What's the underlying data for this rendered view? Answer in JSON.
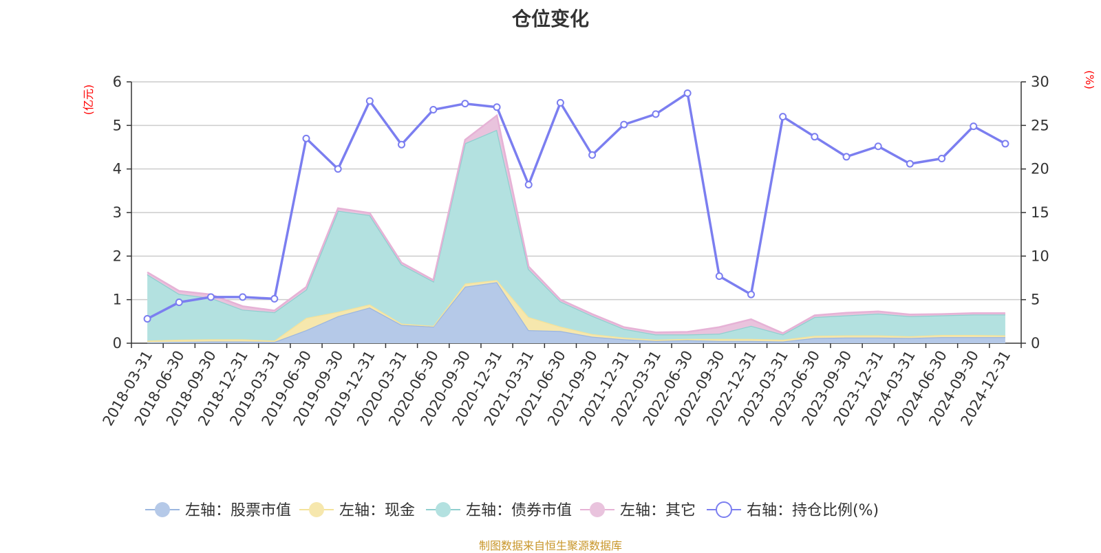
{
  "title": "仓位变化",
  "source": "制图数据来自恒生聚源数据库",
  "chart_data": {
    "type": "area",
    "title": "仓位变化",
    "left_axis": {
      "unit": "(亿元)",
      "ylim": [
        0,
        6
      ],
      "ticks": [
        "0",
        "1",
        "2",
        "3",
        "4",
        "5",
        "6"
      ]
    },
    "right_axis": {
      "unit": "(%)",
      "ylim": [
        0,
        30
      ],
      "ticks": [
        "0",
        "5",
        "10",
        "15",
        "20",
        "25",
        "30"
      ]
    },
    "grid": true,
    "legend_position": "bottom",
    "categories": [
      "2018-03-31",
      "2018-06-30",
      "2018-09-30",
      "2018-12-31",
      "2019-03-31",
      "2019-06-30",
      "2019-09-30",
      "2019-12-31",
      "2020-03-31",
      "2020-06-30",
      "2020-09-30",
      "2020-12-31",
      "2021-03-31",
      "2021-06-30",
      "2021-09-30",
      "2021-12-31",
      "2022-03-31",
      "2022-06-30",
      "2022-09-30",
      "2022-12-31",
      "2023-03-31",
      "2023-06-30",
      "2023-09-30",
      "2023-12-31",
      "2024-03-31",
      "2024-06-30",
      "2024-09-30",
      "2024-12-31"
    ],
    "stacked_series": [
      {
        "name": "左轴：股票市值",
        "axis": "left",
        "color": "#9bb6e0",
        "fill": "#b5c9e8",
        "values": [
          0.02,
          0.03,
          0.04,
          0.04,
          0.03,
          0.3,
          0.62,
          0.82,
          0.42,
          0.38,
          1.3,
          1.4,
          0.3,
          0.28,
          0.15,
          0.09,
          0.05,
          0.07,
          0.05,
          0.05,
          0.04,
          0.12,
          0.13,
          0.13,
          0.12,
          0.14,
          0.14,
          0.14
        ]
      },
      {
        "name": "左轴：现金",
        "axis": "left",
        "color": "#f4e29a",
        "fill": "#f6e7ad",
        "values": [
          0.04,
          0.05,
          0.05,
          0.05,
          0.03,
          0.28,
          0.1,
          0.07,
          0.03,
          0.02,
          0.07,
          0.05,
          0.3,
          0.1,
          0.06,
          0.04,
          0.03,
          0.03,
          0.05,
          0.05,
          0.04,
          0.05,
          0.05,
          0.05,
          0.04,
          0.05,
          0.05,
          0.04
        ]
      },
      {
        "name": "左轴：债券市值",
        "axis": "left",
        "color": "#8fcfcf",
        "fill": "#b3e1e0",
        "values": [
          1.52,
          1.05,
          0.95,
          0.68,
          0.65,
          0.65,
          2.32,
          2.05,
          1.36,
          1.02,
          3.22,
          3.45,
          1.1,
          0.58,
          0.42,
          0.2,
          0.12,
          0.1,
          0.12,
          0.3,
          0.12,
          0.43,
          0.46,
          0.5,
          0.46,
          0.45,
          0.47,
          0.48
        ]
      },
      {
        "name": "左轴：其它",
        "axis": "left",
        "color": "#e6b2d6",
        "fill": "#e9c3dd",
        "values": [
          0.05,
          0.07,
          0.08,
          0.08,
          0.04,
          0.06,
          0.06,
          0.05,
          0.04,
          0.03,
          0.08,
          0.33,
          0.06,
          0.04,
          0.04,
          0.04,
          0.05,
          0.06,
          0.15,
          0.15,
          0.03,
          0.04,
          0.06,
          0.05,
          0.04,
          0.03,
          0.03,
          0.03
        ]
      }
    ],
    "line_series": {
      "name": "右轴：持仓比例(%)",
      "axis": "right",
      "color": "#7b7ef0",
      "values": [
        2.8,
        4.7,
        5.3,
        5.3,
        5.1,
        23.5,
        20.0,
        27.8,
        22.8,
        26.8,
        27.5,
        27.1,
        18.2,
        27.6,
        21.6,
        25.1,
        26.3,
        28.7,
        7.7,
        5.6,
        26.0,
        23.7,
        21.4,
        22.6,
        20.6,
        21.2,
        24.9,
        22.9
      ]
    }
  }
}
